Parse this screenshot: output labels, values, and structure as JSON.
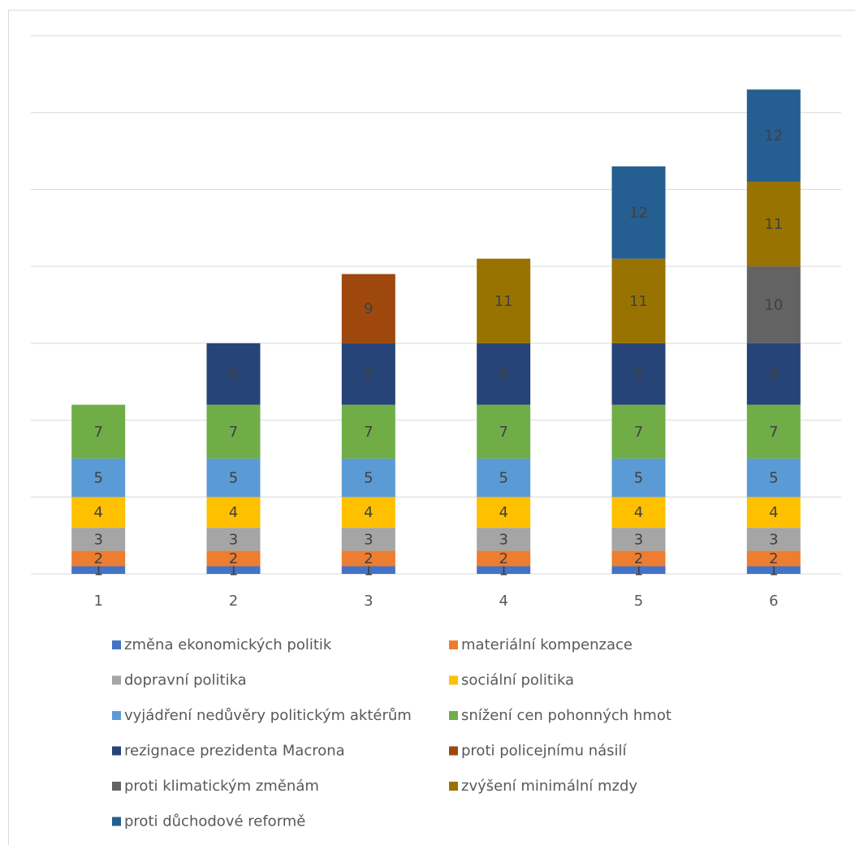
{
  "chart_data": {
    "type": "stacked-bar",
    "categories": [
      "1",
      "2",
      "3",
      "4",
      "5",
      "6"
    ],
    "ylim": [
      0,
      70
    ],
    "yticks": [
      0,
      10,
      20,
      30,
      40,
      50,
      60,
      70
    ],
    "grid": true,
    "series": [
      {
        "name": "změna ekonomických politik",
        "color": "#4472c4",
        "values": [
          1,
          1,
          1,
          1,
          1,
          1
        ]
      },
      {
        "name": "materiální kompenzace",
        "color": "#ed7d31",
        "values": [
          2,
          2,
          2,
          2,
          2,
          2
        ]
      },
      {
        "name": "dopravní politika",
        "color": "#a5a5a5",
        "values": [
          3,
          3,
          3,
          3,
          3,
          3
        ]
      },
      {
        "name": "sociální politika",
        "color": "#ffc000",
        "values": [
          4,
          4,
          4,
          4,
          4,
          4
        ]
      },
      {
        "name": "vyjádření nedůvěry politickým aktérům",
        "color": "#5b9bd5",
        "values": [
          5,
          5,
          5,
          5,
          5,
          5
        ]
      },
      {
        "name": "snížení cen pohonných hmot",
        "color": "#70ad47",
        "values": [
          7,
          7,
          7,
          7,
          7,
          7
        ]
      },
      {
        "name": "rezignace prezidenta Macrona",
        "color": "#264478",
        "values": [
          null,
          8,
          8,
          8,
          8,
          8
        ]
      },
      {
        "name": "proti policejnímu násilí",
        "color": "#9e480e",
        "values": [
          null,
          null,
          9,
          null,
          null,
          null
        ]
      },
      {
        "name": "proti klimatickým změnám",
        "color": "#636363",
        "values": [
          null,
          null,
          null,
          null,
          null,
          10
        ]
      },
      {
        "name": "zvýšení minimální mzdy",
        "color": "#997300",
        "values": [
          null,
          null,
          null,
          11,
          11,
          11
        ]
      },
      {
        "name": "proti důchodové reformě",
        "color": "#255e91",
        "values": [
          null,
          null,
          null,
          null,
          12,
          12
        ]
      }
    ]
  }
}
